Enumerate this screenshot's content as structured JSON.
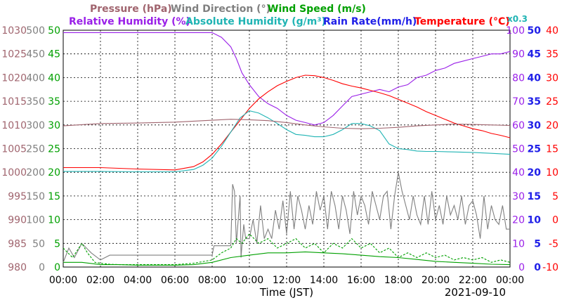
{
  "chart_data": {
    "type": "line",
    "date": "2021-09-10",
    "xlabel": "Time (JST)",
    "x_ticks": [
      "00:00",
      "02:00",
      "04:00",
      "06:00",
      "08:00",
      "10:00",
      "12:00",
      "14:00",
      "16:00",
      "18:00",
      "20:00",
      "22:00",
      "00:00"
    ],
    "x_range_hours": [
      0,
      24
    ],
    "grid": true,
    "legend": {
      "row1": [
        {
          "label": "Pressure (hPa)",
          "color": "#a0646e"
        },
        {
          "label": "Wind Direction (°)",
          "color": "#808080"
        },
        {
          "label": "Wind Speed (m/s)",
          "color": "#00a000"
        }
      ],
      "row2": [
        {
          "label": "Relative Humidity (%)",
          "color": "#9a20e8"
        },
        {
          "label": "Absolute Humidity (g/m³)",
          "color": "#20b4b4"
        },
        {
          "label": "Rain Rate(mm/h)",
          "color": "#2020e8"
        },
        {
          "label": "Temperature (°C)",
          "color": "#ff0000"
        }
      ],
      "scale_note": "x0.3"
    },
    "axes": {
      "pressure": {
        "color": "#a0646e",
        "range": [
          980,
          1030
        ],
        "ticks": [
          "1030",
          "1025",
          "1020",
          "1015",
          "1010",
          "1005",
          "1000",
          "995",
          "990",
          "985",
          "980"
        ]
      },
      "wind_direction": {
        "color": "#808080",
        "range": [
          0,
          500
        ],
        "ticks": [
          "500",
          "450",
          "400",
          "350",
          "300",
          "250",
          "200",
          "150",
          "100",
          "50",
          "0"
        ]
      },
      "wind_speed": {
        "color": "#00a000",
        "range": [
          0,
          50
        ],
        "ticks": [
          "50",
          "45",
          "40",
          "35",
          "30",
          "25",
          "20",
          "15",
          "10",
          "5",
          "0"
        ]
      },
      "humidity": {
        "color": "#9a20e8",
        "range": [
          0,
          100
        ],
        "ticks": [
          "100",
          "90",
          "80",
          "70",
          "60",
          "50",
          "40",
          "30",
          "20",
          "10",
          "0"
        ]
      },
      "rain_rate": {
        "color": "#2020e8",
        "range": [
          0,
          50
        ],
        "ticks": [
          "50",
          "45",
          "40",
          "35",
          "30",
          "25",
          "20",
          "15",
          "10",
          "5",
          "0"
        ]
      },
      "temperature": {
        "color": "#ff0000",
        "range": [
          -10,
          40
        ],
        "ticks": [
          "40",
          "35",
          "30",
          "25",
          "20",
          "15",
          "10",
          "5",
          "0",
          "-5",
          "-10"
        ]
      }
    },
    "series": [
      {
        "name": "Relative Humidity",
        "axis": "humidity",
        "color": "#9a20e8",
        "x": [
          0,
          8,
          8.5,
          9,
          9.3,
          9.6,
          10,
          10.5,
          11,
          11.5,
          12,
          12.5,
          13,
          13.5,
          14,
          14.5,
          15,
          15.5,
          16,
          16.5,
          17,
          17.5,
          18,
          18.5,
          19,
          19.5,
          20,
          20.5,
          21,
          21.5,
          22,
          22.5,
          23,
          23.5,
          24
        ],
        "y": [
          99,
          99,
          97,
          93,
          88,
          82,
          77,
          72,
          69,
          67,
          64,
          62,
          61,
          60,
          61,
          64,
          68,
          72,
          73,
          74,
          75,
          74,
          76,
          77,
          80,
          81,
          83,
          84,
          86,
          87,
          88,
          89,
          90,
          90,
          91
        ]
      },
      {
        "name": "Temperature",
        "axis": "temperature",
        "color": "#ff0000",
        "x": [
          0,
          2,
          4,
          6,
          7,
          7.5,
          8,
          8.5,
          9,
          9.5,
          10,
          10.5,
          11,
          11.5,
          12,
          12.5,
          13,
          13.5,
          14,
          14.5,
          15,
          15.5,
          16,
          16.5,
          17,
          17.5,
          18,
          18.5,
          19,
          19.5,
          20,
          20.5,
          21,
          21.5,
          22,
          22.5,
          23,
          23.5,
          24
        ],
        "y": [
          11,
          11,
          10.7,
          10.5,
          11.2,
          12.2,
          13.8,
          16,
          18.5,
          21,
          23.5,
          25.5,
          27,
          28.3,
          29.2,
          30,
          30.5,
          30.4,
          30,
          29.4,
          28.7,
          28.2,
          27.8,
          27.3,
          26.8,
          26.2,
          25.4,
          24.6,
          23.8,
          22.8,
          22,
          21.2,
          20.4,
          19.8,
          19.2,
          18.8,
          18.2,
          17.8,
          17.3
        ]
      },
      {
        "name": "Absolute Humidity",
        "axis": "temperature",
        "color": "#20b4b4",
        "x": [
          0,
          2,
          4,
          6,
          7,
          7.5,
          8,
          8.5,
          9,
          9.5,
          10,
          10.5,
          11,
          11.5,
          12,
          12.5,
          13,
          13.5,
          14,
          14.5,
          15,
          15.5,
          16,
          16.5,
          17,
          17.5,
          18,
          18.5,
          19,
          19.5,
          20,
          21,
          22,
          23,
          24
        ],
        "y": [
          10.2,
          10.2,
          10.1,
          10.1,
          10.6,
          11.5,
          13,
          15.5,
          18.5,
          21.5,
          23,
          22.5,
          21.5,
          20.3,
          19,
          18,
          17.8,
          17.5,
          17.5,
          18,
          19,
          20.3,
          20.3,
          19.8,
          18.8,
          16,
          15,
          14.8,
          14.5,
          14.4,
          14.4,
          14.3,
          14.2,
          14,
          13.8
        ]
      },
      {
        "name": "Pressure",
        "axis": "pressure",
        "color": "#a0646e",
        "x": [
          0,
          2,
          4,
          6,
          7,
          8,
          9,
          10,
          11,
          12,
          13,
          14,
          15,
          16,
          17,
          18,
          19,
          20,
          21,
          22,
          23,
          24
        ],
        "y": [
          1009.8,
          1010.3,
          1010.4,
          1010.6,
          1010.8,
          1011,
          1011.2,
          1011.1,
          1010.9,
          1010.5,
          1010,
          1009.6,
          1009.3,
          1009.2,
          1009.3,
          1009.5,
          1009.8,
          1010,
          1010.2,
          1010.1,
          1010,
          1009.9
        ]
      },
      {
        "name": "Wind Direction",
        "axis": "wind_direction",
        "color": "#808080",
        "x": [
          0,
          0.3,
          0.6,
          1,
          1.5,
          2,
          2.5,
          3,
          4,
          5,
          6,
          7,
          8,
          8.1,
          8.5,
          9,
          9.1,
          9.2,
          9.3,
          9.4,
          9.5,
          9.55,
          9.6,
          9.7,
          9.8,
          10,
          10.1,
          10.2,
          10.4,
          10.6,
          10.8,
          11,
          11.2,
          11.4,
          11.6,
          11.8,
          12,
          12.2,
          12.4,
          12.6,
          12.8,
          13,
          13.2,
          13.4,
          13.6,
          13.8,
          14,
          14.2,
          14.4,
          14.6,
          14.8,
          15,
          15.2,
          15.4,
          15.6,
          15.8,
          16,
          16.2,
          16.4,
          16.6,
          16.8,
          17,
          17.2,
          17.4,
          17.6,
          17.8,
          18,
          18.2,
          18.4,
          18.6,
          18.8,
          19,
          19.2,
          19.4,
          19.6,
          19.8,
          20,
          20.2,
          20.4,
          20.6,
          20.8,
          21,
          21.2,
          21.4,
          21.6,
          21.8,
          22,
          22.2,
          22.4,
          22.6,
          22.8,
          23,
          23.2,
          23.4,
          23.6,
          23.8,
          24
        ],
        "y": [
          10,
          40,
          20,
          50,
          30,
          15,
          25,
          25,
          25,
          25,
          25,
          25,
          25,
          45,
          45,
          45,
          175,
          160,
          50,
          100,
          150,
          20,
          45,
          90,
          60,
          60,
          80,
          100,
          50,
          130,
          60,
          80,
          60,
          120,
          80,
          140,
          70,
          160,
          80,
          150,
          120,
          80,
          130,
          90,
          160,
          120,
          150,
          80,
          160,
          130,
          80,
          150,
          120,
          70,
          160,
          110,
          150,
          130,
          90,
          160,
          130,
          100,
          150,
          160,
          80,
          150,
          200,
          160,
          130,
          100,
          150,
          110,
          90,
          150,
          90,
          160,
          100,
          130,
          90,
          150,
          110,
          130,
          100,
          150,
          90,
          130,
          140,
          110,
          60,
          150,
          80,
          130,
          100,
          90,
          130,
          80,
          80
        ]
      },
      {
        "name": "Wind Speed",
        "axis": "wind_speed",
        "color": "#00a000",
        "x": [
          0,
          1,
          2,
          3,
          4,
          5,
          6,
          7,
          8,
          9,
          10,
          11,
          12,
          13,
          14,
          15,
          16,
          17,
          18,
          19,
          20,
          21,
          22,
          23,
          24
        ],
        "y": [
          1,
          1,
          0.5,
          0.5,
          0.4,
          0.4,
          0.4,
          0.5,
          1,
          2,
          2.5,
          3,
          3,
          3.2,
          3,
          2.8,
          2.5,
          2.2,
          2,
          1.6,
          1.2,
          1,
          0.8,
          0.6,
          0.5
        ]
      },
      {
        "name": "Wind Speed gust",
        "axis": "wind_speed",
        "color": "#00a000",
        "dashed": true,
        "x": [
          0,
          0.5,
          1,
          1.3,
          1.7,
          2,
          2.5,
          3,
          4,
          5,
          6,
          7,
          8,
          8.5,
          9,
          9.3,
          9.6,
          10,
          10.5,
          11,
          11.5,
          12,
          12.5,
          13,
          13.5,
          14,
          14.5,
          15,
          15.5,
          16,
          16.5,
          17,
          17.5,
          18,
          18.5,
          19,
          19.5,
          20,
          20.5,
          21,
          21.5,
          22,
          22.5,
          23,
          23.5,
          24
        ],
        "y": [
          4,
          2,
          5,
          3,
          1,
          0.8,
          0.6,
          0.5,
          0.5,
          0.5,
          0.5,
          0.8,
          1.5,
          3,
          4,
          6,
          5,
          7,
          5,
          6,
          4,
          5,
          6,
          4,
          5,
          3,
          5,
          4,
          6,
          4,
          5,
          3,
          4,
          2,
          3,
          2,
          3,
          2,
          2.5,
          1.5,
          2,
          1.5,
          2,
          1,
          1.5,
          1
        ]
      }
    ]
  }
}
